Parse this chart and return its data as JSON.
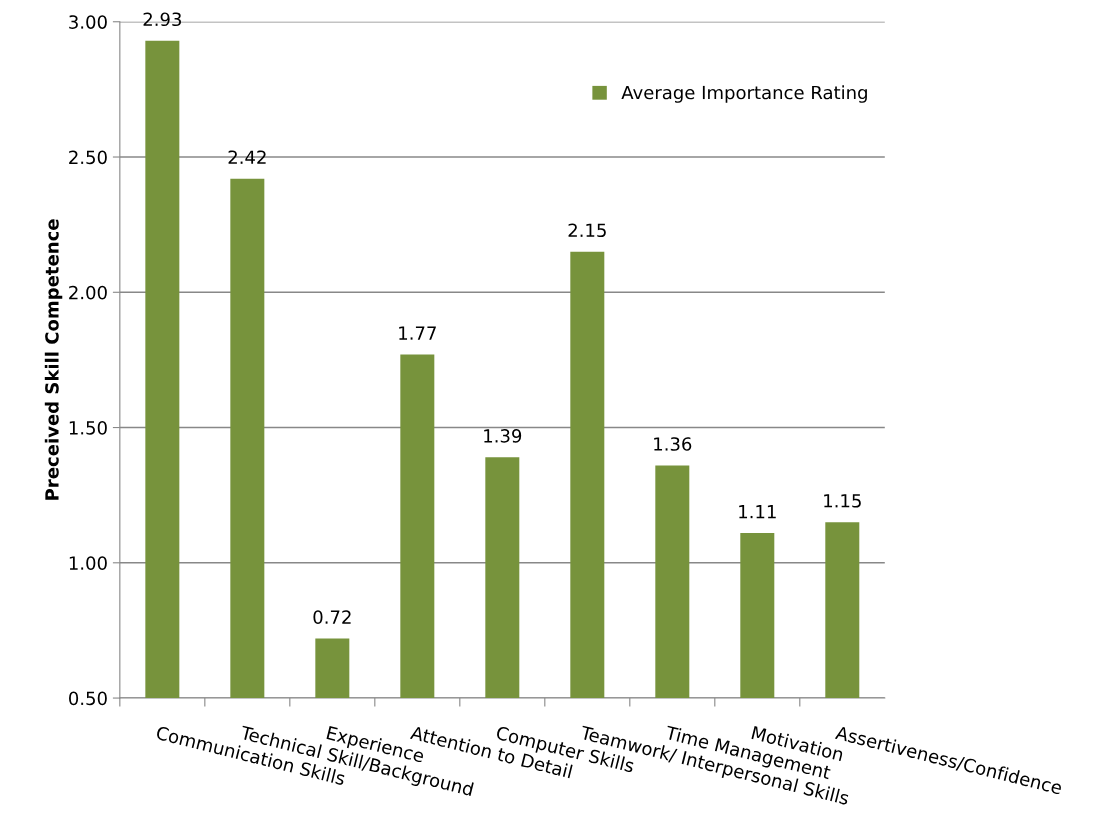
{
  "chart_data": {
    "type": "bar",
    "ylabel": "Preceived Skill Competence",
    "categories": [
      "Communication Skills",
      "Technical Skill/Background",
      "Experience",
      "Attention to Detail",
      "Computer Skills",
      "Teamwork/ Interpersonal Skills",
      "Time Management",
      "Motivation",
      "Assertiveness/Confidence"
    ],
    "series": [
      {
        "name": "Average Importance Rating",
        "color": "#77933c",
        "values": [
          2.93,
          2.42,
          0.72,
          1.77,
          1.39,
          2.15,
          1.36,
          1.11,
          1.15
        ]
      }
    ],
    "ylim": [
      0.5,
      3.0
    ],
    "yticks": [
      {
        "value": 0.5,
        "label": "0.50"
      },
      {
        "value": 1.0,
        "label": "1.00"
      },
      {
        "value": 1.5,
        "label": "1.50"
      },
      {
        "value": 2.0,
        "label": "2.00"
      },
      {
        "value": 2.5,
        "label": "2.50"
      },
      {
        "value": 3.0,
        "label": "3.00"
      }
    ],
    "grid": "y",
    "legend": "top right",
    "data_labels": true
  }
}
